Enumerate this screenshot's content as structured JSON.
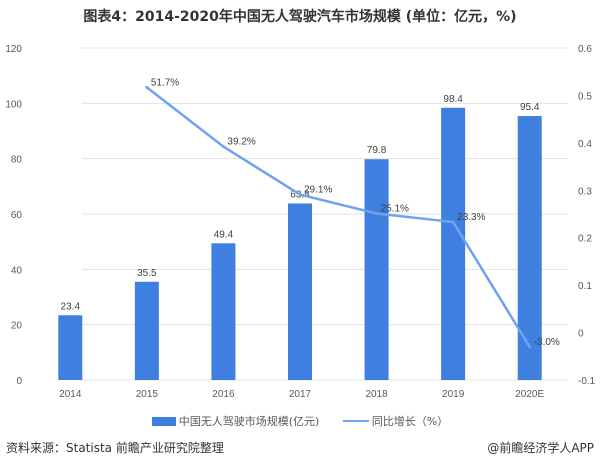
{
  "chart_data": {
    "type": "bar+line",
    "title": "图表4：2014-2020年中国无人驾驶汽车市场规模 (单位：亿元，%)",
    "categories": [
      "2014",
      "2015",
      "2016",
      "2017",
      "2018",
      "2019",
      "2020E"
    ],
    "series": [
      {
        "name": "中国无人驾驶市场规模(亿元)",
        "type": "bar",
        "axis": "left",
        "color": "#3e7fe0",
        "values": [
          23.4,
          35.5,
          49.4,
          63.8,
          79.8,
          98.4,
          95.4
        ],
        "labels": [
          "23.4",
          "35.5",
          "49.4",
          "63.8",
          "79.8",
          "98.4",
          "95.4"
        ]
      },
      {
        "name": "同比增长（%）",
        "type": "line",
        "axis": "right",
        "color": "#6fa3f0",
        "values": [
          null,
          0.517,
          0.392,
          0.291,
          0.251,
          0.233,
          -0.03
        ],
        "labels": [
          "",
          "51.7%",
          "39.2%",
          "29.1%",
          "25.1%",
          "23.3%",
          "-3.0%"
        ]
      }
    ],
    "left_axis": {
      "min": 0,
      "max": 120,
      "step": 20,
      "ticks": [
        "0",
        "20",
        "40",
        "60",
        "80",
        "100",
        "120"
      ]
    },
    "right_axis": {
      "min": -0.1,
      "max": 0.6,
      "step": 0.1,
      "ticks": [
        "-0.1",
        "0",
        "0.1",
        "0.2",
        "0.3",
        "0.4",
        "0.5",
        "0.6"
      ]
    },
    "grid": true,
    "legend": "bottom"
  },
  "footer": {
    "source": "资料来源：Statista 前瞻产业研究院整理",
    "brand": "@前瞻经济学人APP"
  }
}
